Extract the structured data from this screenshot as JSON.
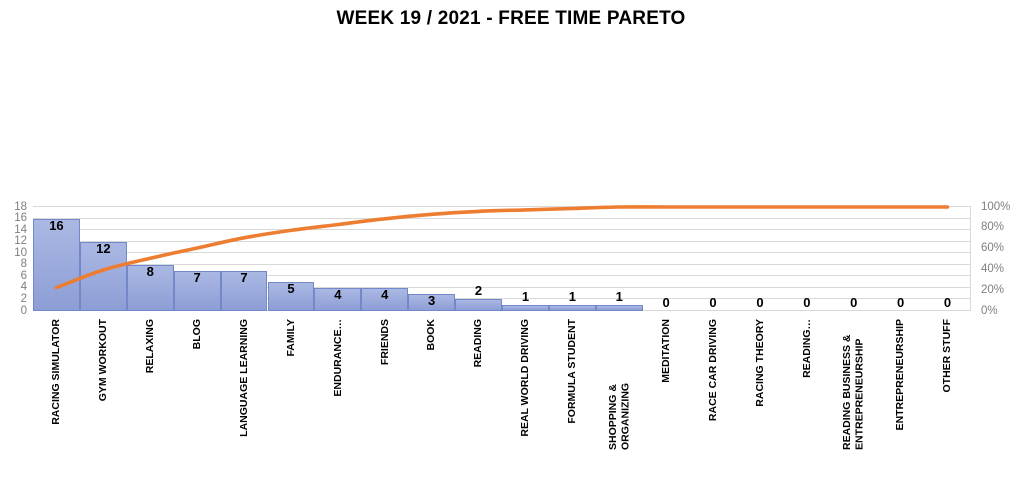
{
  "title": "WEEK 19 / 2021 - FREE TIME PARETO",
  "chart_data": {
    "type": "bar",
    "subtype": "pareto",
    "title": "WEEK 19 / 2021 - FREE TIME PARETO",
    "categories": [
      "RACING SIMULATOR",
      "GYM WORKOUT",
      "RELAXING",
      "BLOG",
      "LANGUAGE LEARNING",
      "FAMILY",
      "ENDURANCE…",
      "FRIENDS",
      "BOOK",
      "READING",
      "REAL WORLD DRIVING",
      "FORMULA STUDENT",
      "SHOPPING & ORGANIZING",
      "MEDITATION",
      "RACE CAR DRIVING",
      "RACING THEORY",
      "READING…",
      "READING BUSINESS & ENTREPRENEURSHIP",
      "ENTREPRENEURSHIP",
      "OTHER STUFF"
    ],
    "series": [
      {
        "name": "hours",
        "type": "bar",
        "values": [
          16,
          12,
          8,
          7,
          7,
          5,
          4,
          4,
          3,
          2,
          1,
          1,
          1,
          0,
          0,
          0,
          0,
          0,
          0,
          0
        ]
      },
      {
        "name": "cumulative-percent",
        "type": "line",
        "values": [
          22.5,
          39.4,
          50.7,
          60.6,
          70.4,
          77.5,
          83.1,
          88.7,
          93.0,
          95.8,
          97.2,
          98.6,
          100,
          100,
          100,
          100,
          100,
          100,
          100,
          100
        ]
      }
    ],
    "left_axis": {
      "min": 0,
      "max": 18,
      "step": 2
    },
    "right_axis": {
      "min": 0,
      "max": 100,
      "step": 20,
      "tick_labels": [
        "0%",
        "20%",
        "40%",
        "60%",
        "80%",
        "100%"
      ]
    },
    "grid": true,
    "legend": "none",
    "data_labels": true,
    "colors": {
      "bar_fill_top": "#aab8e3",
      "bar_fill_bottom": "#8d9ed6",
      "bar_border": "#7388c9",
      "line": "#ED7D31",
      "gridline": "#d9d9d9",
      "axis_text": "#7f7f7f",
      "value_label": "#000000",
      "category_label": "#000000"
    }
  }
}
